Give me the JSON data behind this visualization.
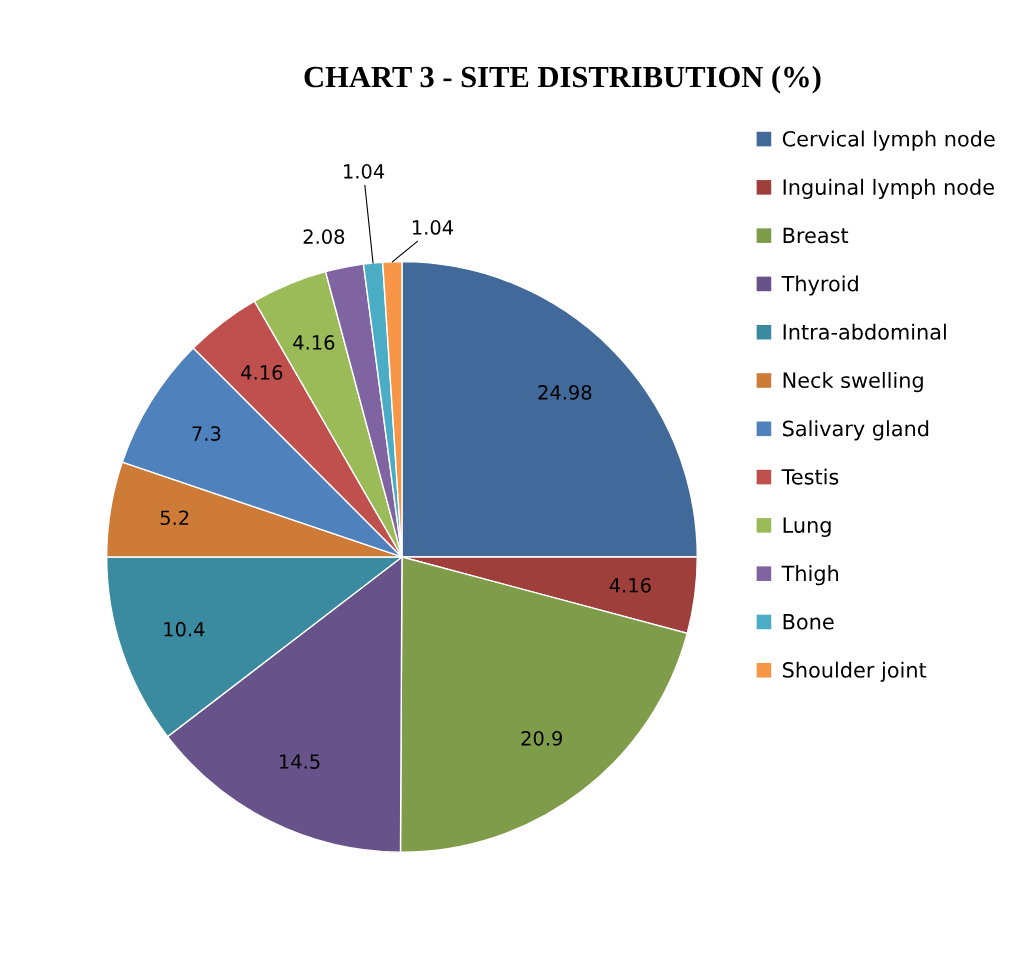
{
  "chart_data": {
    "type": "pie",
    "title": "CHART 3 - SITE DISTRIBUTION (%)",
    "categories": [
      "Cervical lymph node",
      "Inguinal lymph node",
      "Breast",
      "Thyroid",
      "Intra-abdominal",
      "Neck swelling",
      "Salivary gland",
      "Testis",
      "Lung",
      "Thigh",
      "Bone",
      "Shoulder joint"
    ],
    "values": [
      24.98,
      4.16,
      20.9,
      14.5,
      10.4,
      5.2,
      7.3,
      4.16,
      4.16,
      2.08,
      1.04,
      1.04
    ],
    "colors": [
      "#416999",
      "#9e3f3c",
      "#7f9c4a",
      "#67528a",
      "#3a8ba0",
      "#cf7b38",
      "#4f81bd",
      "#c0504d",
      "#9bbb59",
      "#8064a2",
      "#4bacc6",
      "#f79646"
    ],
    "data_labels": true,
    "legend": "right"
  }
}
